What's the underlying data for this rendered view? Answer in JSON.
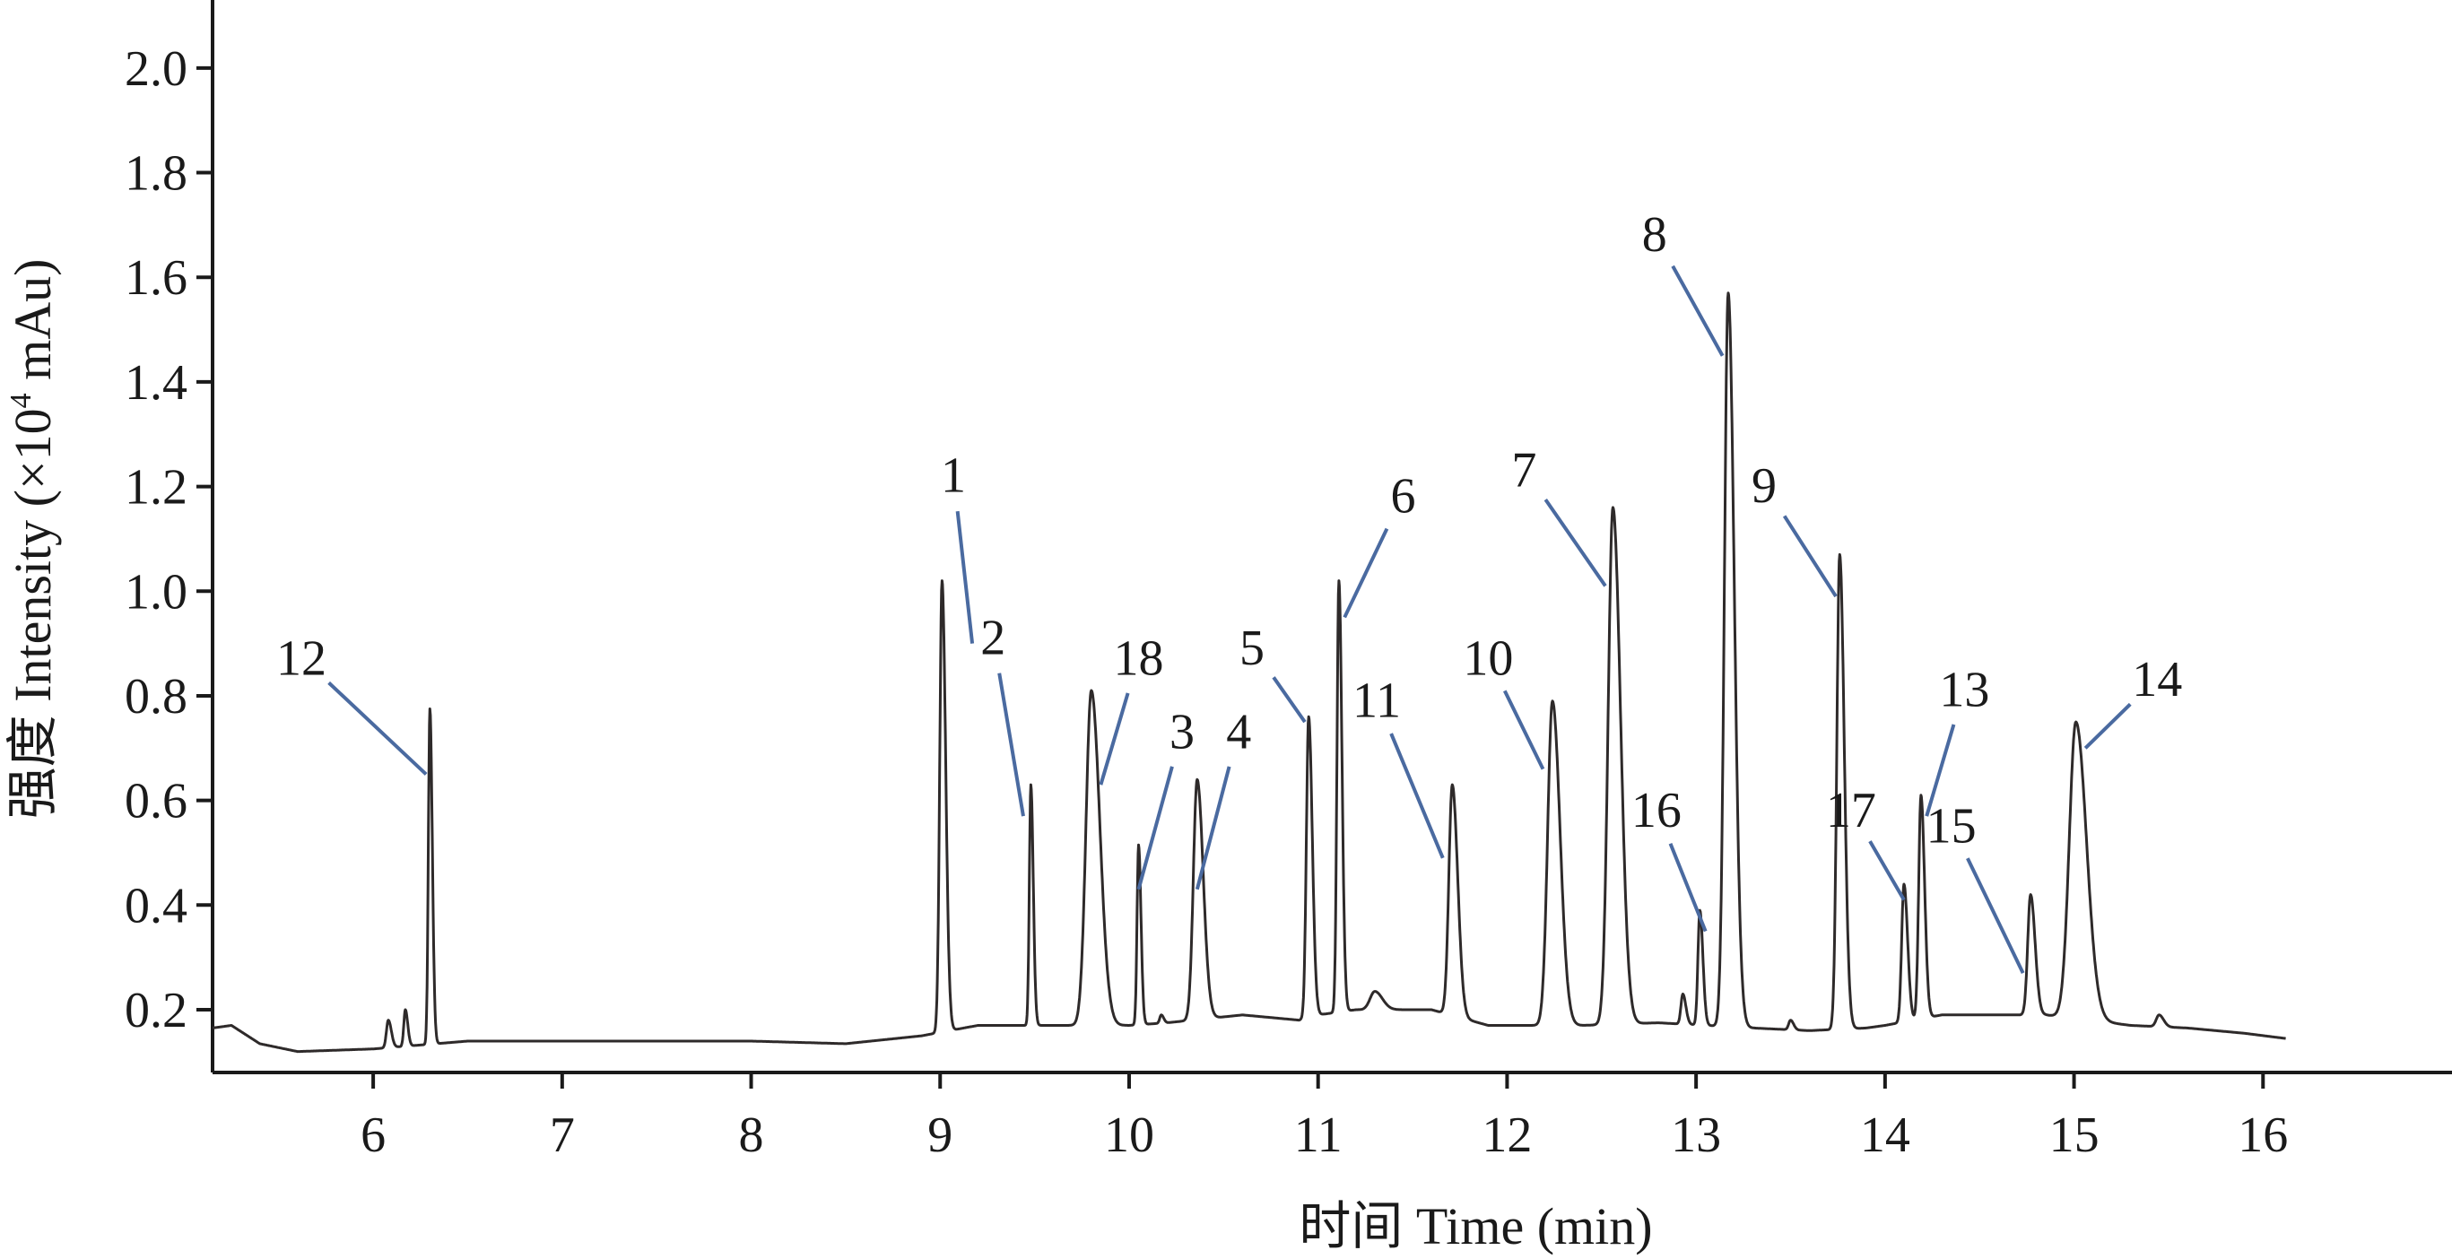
{
  "chart_data": {
    "type": "line",
    "xlabel": "时间 Time (min)",
    "ylabel": "强度 Intensity (×10",
    "ylabel_sup": "4",
    "ylabel_tail": " mAu)",
    "xlim": [
      5.15,
      17.0
    ],
    "ylim": [
      0.08,
      2.13
    ],
    "xticks": [
      6,
      7,
      8,
      9,
      10,
      11,
      12,
      13,
      14,
      15,
      16
    ],
    "yticks": [
      0.2,
      0.4,
      0.6,
      0.8,
      1.0,
      1.2,
      1.4,
      1.6,
      1.8,
      2.0
    ],
    "grid": false,
    "baseline": [
      [
        5.15,
        0.165
      ],
      [
        5.25,
        0.17
      ],
      [
        5.4,
        0.135
      ],
      [
        5.6,
        0.12
      ],
      [
        6.0,
        0.125
      ],
      [
        6.5,
        0.14
      ],
      [
        7.0,
        0.14
      ],
      [
        8.0,
        0.14
      ],
      [
        8.5,
        0.135
      ],
      [
        8.9,
        0.15
      ],
      [
        9.2,
        0.17
      ],
      [
        9.6,
        0.17
      ],
      [
        10.0,
        0.17
      ],
      [
        10.2,
        0.175
      ],
      [
        10.6,
        0.19
      ],
      [
        10.9,
        0.18
      ],
      [
        11.0,
        0.19
      ],
      [
        11.2,
        0.2
      ],
      [
        11.6,
        0.2
      ],
      [
        11.9,
        0.17
      ],
      [
        12.1,
        0.17
      ],
      [
        12.4,
        0.17
      ],
      [
        12.8,
        0.175
      ],
      [
        13.3,
        0.165
      ],
      [
        13.6,
        0.16
      ],
      [
        13.9,
        0.165
      ],
      [
        14.0,
        0.17
      ],
      [
        14.3,
        0.19
      ],
      [
        14.6,
        0.19
      ],
      [
        14.85,
        0.19
      ],
      [
        15.3,
        0.17
      ],
      [
        15.6,
        0.165
      ],
      [
        15.9,
        0.155
      ],
      [
        16.12,
        0.145
      ]
    ],
    "peaks": [
      {
        "label": "12",
        "rt": 6.3,
        "height": 0.775,
        "width": 0.008,
        "label_x": 5.62,
        "label_y": 0.84,
        "tip_x": 6.28,
        "tip_y": 0.65
      },
      {
        "label": "1",
        "rt": 9.01,
        "height": 1.02,
        "width": 0.012,
        "label_x": 9.07,
        "label_y": 1.19,
        "tip_x": 9.17,
        "tip_y": 0.9
      },
      {
        "label": "2",
        "rt": 9.48,
        "height": 0.63,
        "width": 0.008,
        "label_x": 9.28,
        "label_y": 0.88,
        "tip_x": 9.44,
        "tip_y": 0.57
      },
      {
        "label": "18",
        "rt": 9.8,
        "height": 0.81,
        "width": 0.028,
        "label_x": 10.05,
        "label_y": 0.84,
        "tip_x": 9.85,
        "tip_y": 0.63
      },
      {
        "label": "3",
        "rt": 10.05,
        "height": 0.515,
        "width": 0.008,
        "label_x": 10.28,
        "label_y": 0.7,
        "tip_x": 10.05,
        "tip_y": 0.43
      },
      {
        "label": "4",
        "rt": 10.36,
        "height": 0.64,
        "width": 0.02,
        "label_x": 10.58,
        "label_y": 0.7,
        "tip_x": 10.36,
        "tip_y": 0.43
      },
      {
        "label": "5",
        "rt": 10.95,
        "height": 0.76,
        "width": 0.012,
        "label_x": 10.65,
        "label_y": 0.86,
        "tip_x": 10.93,
        "tip_y": 0.75
      },
      {
        "label": "6",
        "rt": 11.11,
        "height": 1.02,
        "width": 0.01,
        "label_x": 11.45,
        "label_y": 1.15,
        "tip_x": 11.14,
        "tip_y": 0.95
      },
      {
        "label": "11",
        "rt": 11.71,
        "height": 0.63,
        "width": 0.018,
        "label_x": 11.31,
        "label_y": 0.76,
        "tip_x": 11.66,
        "tip_y": 0.49
      },
      {
        "label": "10",
        "rt": 12.24,
        "height": 0.79,
        "width": 0.025,
        "label_x": 11.9,
        "label_y": 0.84,
        "tip_x": 12.19,
        "tip_y": 0.66
      },
      {
        "label": "7",
        "rt": 12.56,
        "height": 1.16,
        "width": 0.025,
        "label_x": 12.09,
        "label_y": 1.2,
        "tip_x": 12.52,
        "tip_y": 1.01
      },
      {
        "label": "16",
        "rt": 13.02,
        "height": 0.39,
        "width": 0.01,
        "label_x": 12.79,
        "label_y": 0.55,
        "tip_x": 13.05,
        "tip_y": 0.35
      },
      {
        "label": "8",
        "rt": 13.17,
        "height": 1.57,
        "width": 0.02,
        "label_x": 12.78,
        "label_y": 1.65,
        "tip_x": 13.14,
        "tip_y": 1.45
      },
      {
        "label": "9",
        "rt": 13.76,
        "height": 1.07,
        "width": 0.015,
        "label_x": 13.36,
        "label_y": 1.17,
        "tip_x": 13.74,
        "tip_y": 0.99
      },
      {
        "label": "17",
        "rt": 14.1,
        "height": 0.44,
        "width": 0.012,
        "label_x": 13.82,
        "label_y": 0.55,
        "tip_x": 14.1,
        "tip_y": 0.41
      },
      {
        "label": "13",
        "rt": 14.19,
        "height": 0.61,
        "width": 0.012,
        "label_x": 14.42,
        "label_y": 0.78,
        "tip_x": 14.22,
        "tip_y": 0.57
      },
      {
        "label": "15",
        "rt": 14.77,
        "height": 0.42,
        "width": 0.015,
        "label_x": 14.35,
        "label_y": 0.52,
        "tip_x": 14.73,
        "tip_y": 0.27
      },
      {
        "label": "14",
        "rt": 15.01,
        "height": 0.75,
        "width": 0.035,
        "label_x": 15.44,
        "label_y": 0.8,
        "tip_x": 15.06,
        "tip_y": 0.7
      }
    ],
    "minor_peaks": [
      {
        "rt": 6.08,
        "height": 0.18,
        "width": 0.01
      },
      {
        "rt": 6.17,
        "height": 0.2,
        "width": 0.008
      },
      {
        "rt": 10.17,
        "height": 0.19,
        "width": 0.008
      },
      {
        "rt": 11.3,
        "height": 0.235,
        "width": 0.025
      },
      {
        "rt": 12.93,
        "height": 0.23,
        "width": 0.01
      },
      {
        "rt": 13.5,
        "height": 0.18,
        "width": 0.01
      },
      {
        "rt": 15.45,
        "height": 0.19,
        "width": 0.015
      }
    ]
  }
}
